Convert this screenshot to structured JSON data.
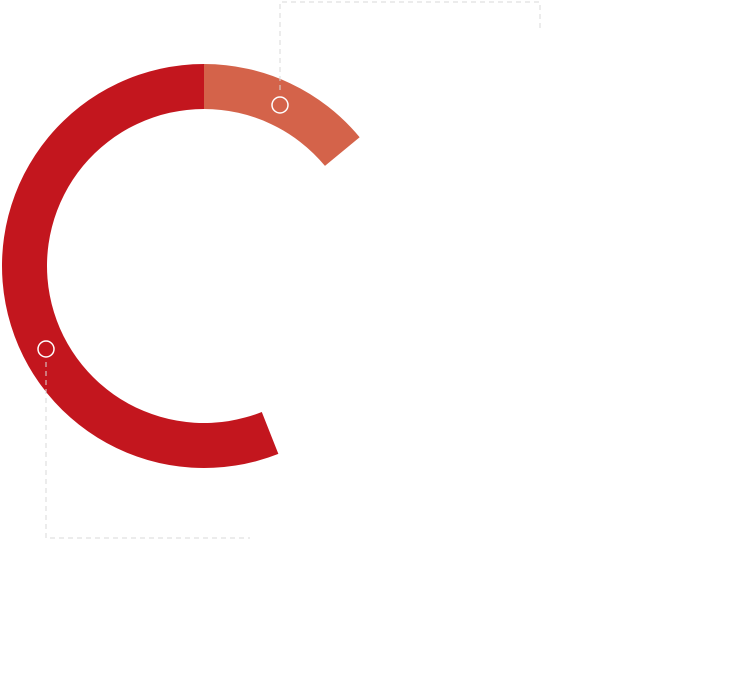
{
  "chart_data": {
    "type": "ring",
    "values": [
      14,
      56
    ],
    "colors": [
      "#d4634a",
      "#c3161e"
    ],
    "lim": [
      0,
      100
    ]
  }
}
